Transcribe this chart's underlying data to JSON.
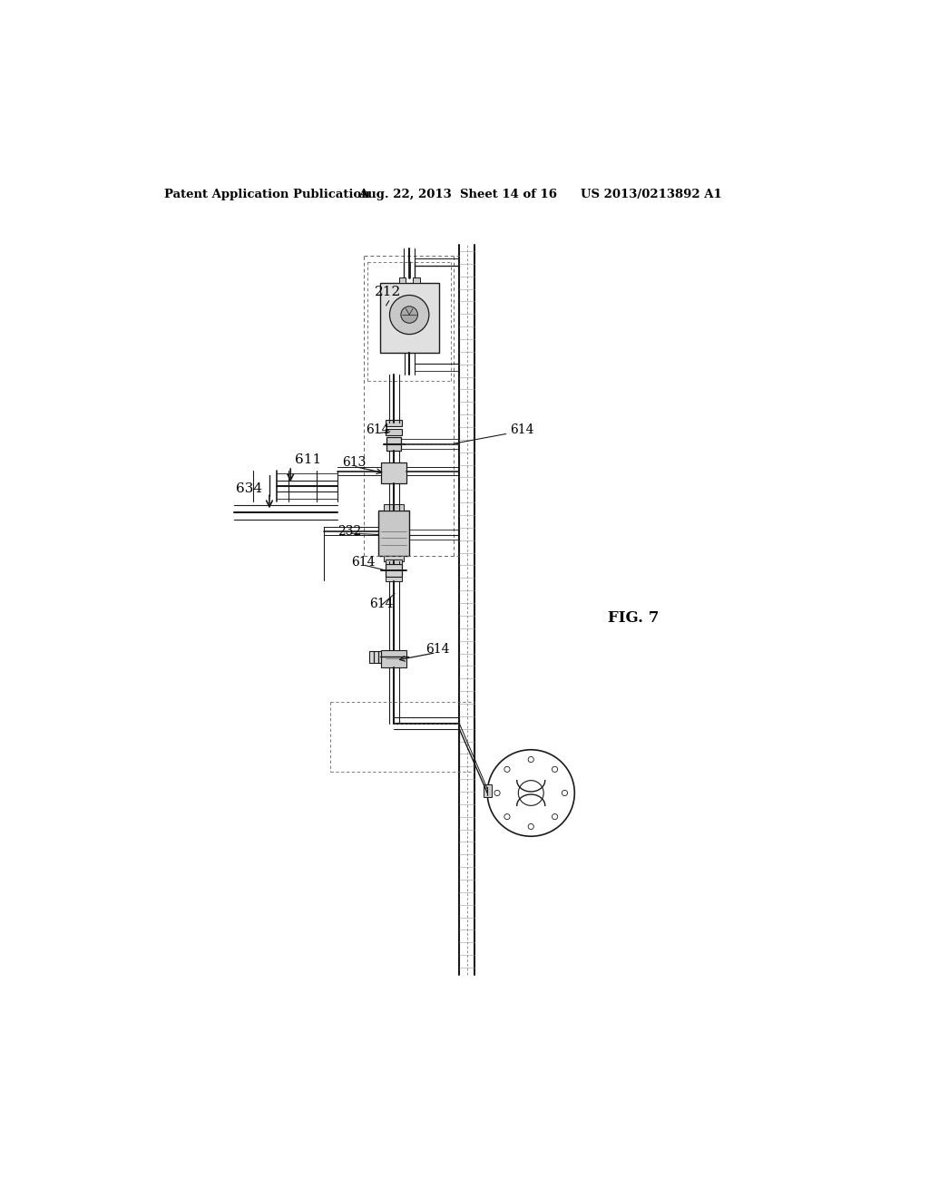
{
  "bg_color": "#ffffff",
  "header_left": "Patent Application Publication",
  "header_center": "Aug. 22, 2013  Sheet 14 of 16",
  "header_right": "US 2013/0213892 A1",
  "fig_label": "FIG. 7",
  "dark": "#1a1a1a",
  "gray": "#666666",
  "light_gray": "#cccccc",
  "med_gray": "#999999"
}
